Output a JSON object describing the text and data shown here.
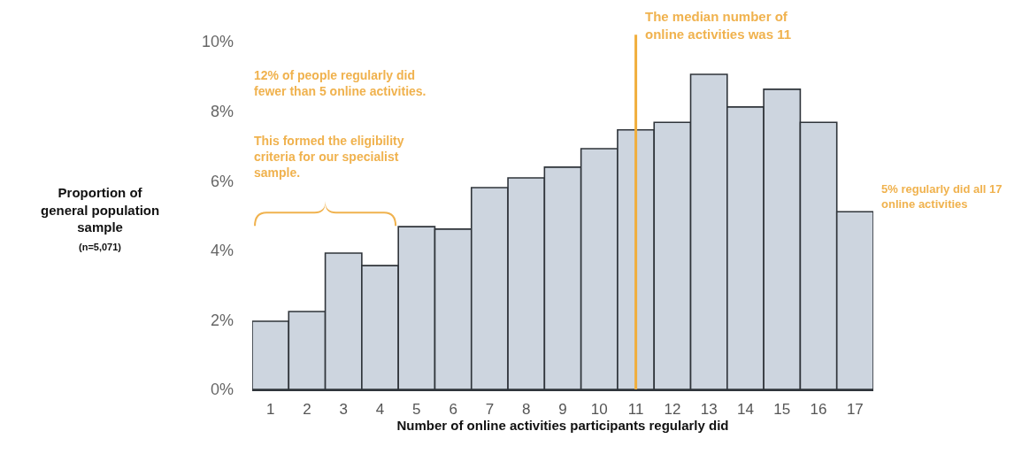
{
  "chart_data": {
    "type": "bar",
    "x": [
      1,
      2,
      3,
      4,
      5,
      6,
      7,
      8,
      9,
      10,
      11,
      12,
      13,
      14,
      15,
      16,
      17
    ],
    "values": [
      1.96,
      2.24,
      3.92,
      3.56,
      4.68,
      4.61,
      5.8,
      6.08,
      6.39,
      6.92,
      7.46,
      7.68,
      9.06,
      8.12,
      8.63,
      7.68,
      5.11
    ],
    "color": "#cdd5df",
    "xlim": [
      0.5,
      17.5
    ],
    "xticks": [
      1,
      2,
      3,
      4,
      5,
      6,
      7,
      8,
      9,
      10,
      11,
      12,
      13,
      14,
      15,
      16,
      17
    ],
    "ylim": [
      0,
      10
    ],
    "yticks": [
      {
        "value": 0,
        "label": "0%"
      },
      {
        "value": 2,
        "label": "2%"
      },
      {
        "value": 4,
        "label": "4%"
      },
      {
        "value": 6,
        "label": "6%"
      },
      {
        "value": 8,
        "label": "8%"
      },
      {
        "value": 10,
        "label": "10%"
      }
    ],
    "xlabel": "Number of online activities participants regularly did",
    "ylabel": "Proportion of\ngeneral population\nsample",
    "ref_lines": [
      {
        "axis": "x",
        "value": 11,
        "color": "#f0ae3c"
      }
    ],
    "annotations": [
      "(n=5,071)",
      "12% of people regularly did\nfewer than 5 online activities.",
      "This formed the eligibility\ncriteria for our specialist\nsample.",
      "The median number of\nonline activities was 11",
      "5% regularly did all 17\nonline activities"
    ],
    "grid": false,
    "legend": false
  }
}
